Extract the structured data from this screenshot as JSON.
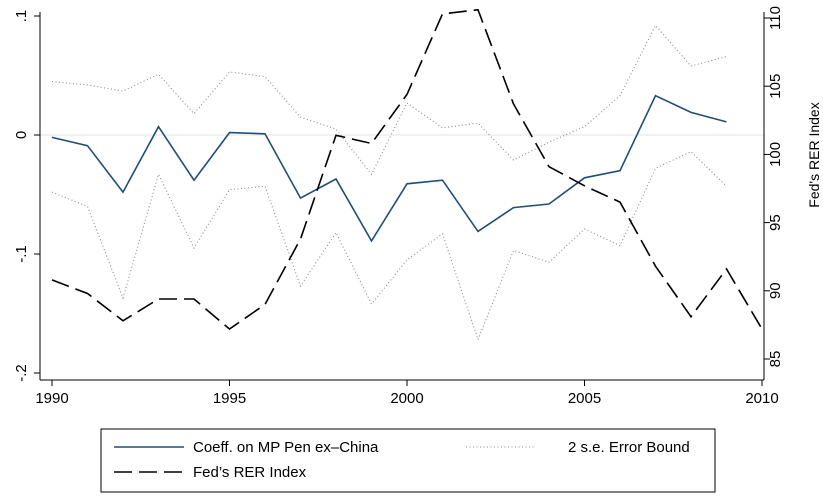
{
  "chart_data": {
    "type": "line",
    "x": [
      1990,
      1991,
      1992,
      1993,
      1994,
      1995,
      1996,
      1997,
      1998,
      1999,
      2000,
      2001,
      2002,
      2003,
      2004,
      2005,
      2006,
      2007,
      2008,
      2009,
      2010
    ],
    "xlim": [
      1990,
      2010
    ],
    "xticks": [
      "1990",
      "1995",
      "2000",
      "2005",
      "2010"
    ],
    "ylim_left": [
      -0.2,
      0.1
    ],
    "yticks_left": [
      {
        "value": -0.2,
        "label": "-.2"
      },
      {
        "value": -0.1,
        "label": "-.1"
      },
      {
        "value": 0,
        "label": "0"
      },
      {
        "value": 0.1,
        "label": ".1"
      }
    ],
    "ylim_right": [
      85,
      110
    ],
    "yticks_right": [
      "85",
      "90",
      "95",
      "100",
      "105",
      "110"
    ],
    "ylabel_right": "Fed's RER Index",
    "reference_line_y": 0,
    "series": [
      {
        "name": "Coeff. on MP Pen ex–China",
        "axis": "left",
        "style": "solid",
        "color": "#1f4e79",
        "values": [
          -0.002,
          -0.009,
          -0.048,
          0.007,
          -0.038,
          0.002,
          0.001,
          -0.053,
          -0.037,
          -0.089,
          -0.041,
          -0.038,
          -0.081,
          -0.061,
          -0.058,
          -0.036,
          -0.03,
          0.033,
          0.019,
          0.011,
          null
        ]
      },
      {
        "name": "2 s.e. Error Bound",
        "axis": "left",
        "style": "dotted",
        "color": "#8a8a8a",
        "values": [
          0.045,
          0.042,
          0.037,
          0.051,
          0.018,
          0.053,
          0.049,
          0.015,
          0.005,
          -0.033,
          0.027,
          0.006,
          0.01,
          -0.021,
          -0.006,
          0.007,
          0.033,
          0.092,
          0.058,
          0.066,
          null
        ]
      },
      {
        "name": "2 s.e. Error Bound (lower)",
        "axis": "left",
        "style": "dotted",
        "color": "#8a8a8a",
        "values": [
          -0.048,
          -0.06,
          -0.137,
          -0.033,
          -0.095,
          -0.046,
          -0.043,
          -0.127,
          -0.082,
          -0.142,
          -0.105,
          -0.083,
          -0.172,
          -0.097,
          -0.107,
          -0.079,
          -0.093,
          -0.028,
          -0.014,
          -0.043,
          null
        ]
      },
      {
        "name": "Fed’s RER Index",
        "axis": "right",
        "style": "dashed",
        "color": "#000000",
        "values": [
          90.8,
          89.8,
          87.8,
          89.4,
          89.4,
          87.2,
          89.0,
          93.8,
          101.4,
          100.8,
          104.4,
          110.3,
          110.6,
          103.7,
          99.1,
          97.7,
          96.5,
          91.8,
          88.1,
          91.6,
          87.2
        ]
      }
    ],
    "legend": {
      "placement": "bottom",
      "entries": [
        {
          "label": "Coeff. on MP Pen ex–China",
          "style": "solid"
        },
        {
          "label": "2 s.e. Error Bound",
          "style": "dotted"
        },
        {
          "label": "Fed’s RER Index",
          "style": "dashed"
        }
      ]
    }
  }
}
